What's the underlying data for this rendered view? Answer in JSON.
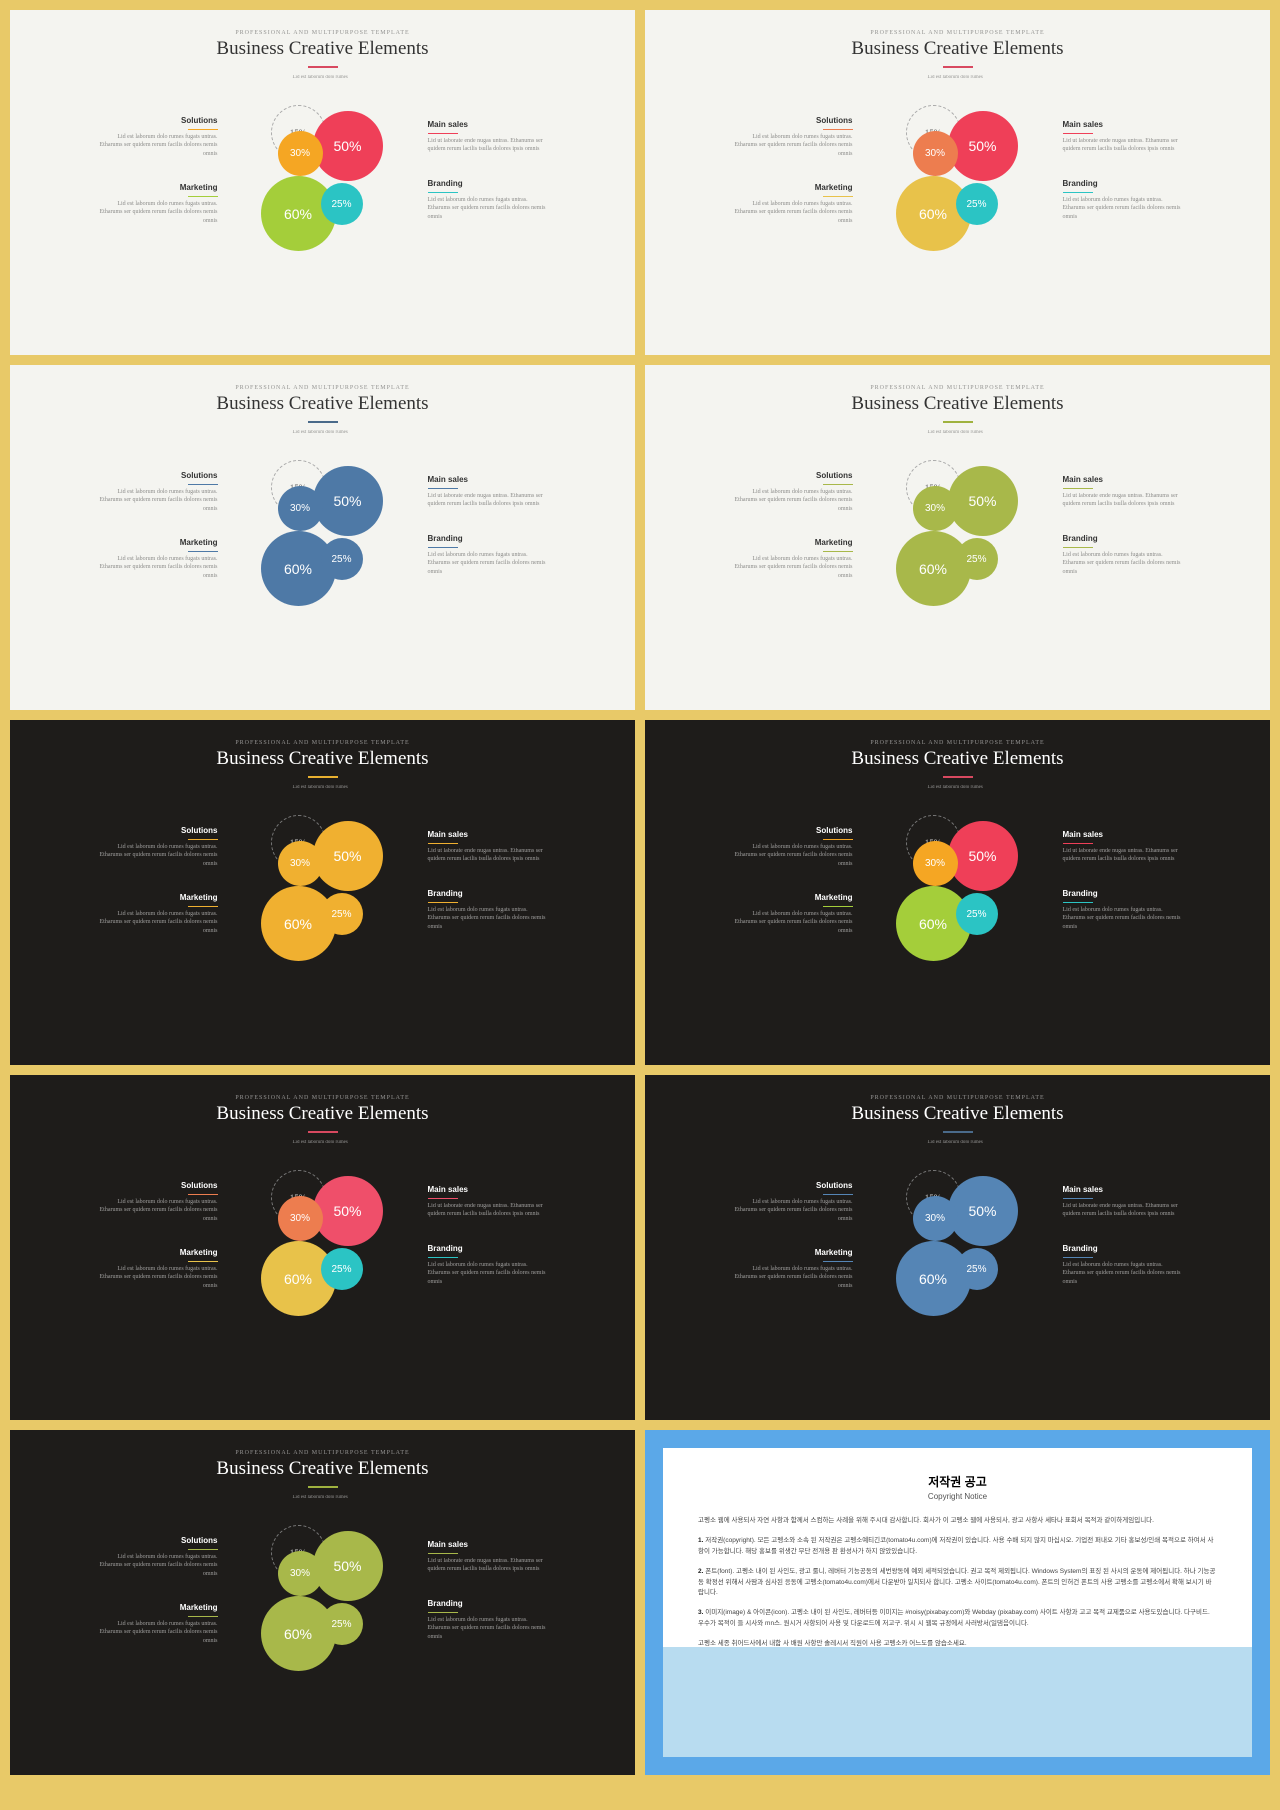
{
  "common": {
    "subtitle": "PROFESSIONAL AND MULTIPURPOSE  TEMPLATE",
    "title": "Business Creative Elements",
    "toplabel": "Lid est laborum dolo rumes",
    "outline": "15%",
    "petals": {
      "p1": "50%",
      "p2": "30%",
      "p3": "60%",
      "p4": "25%"
    },
    "left": {
      "t1": "Solutions",
      "d1": "Lid est laborum dolo rumes fugats untras. Etharums ser quidem rerum facilis dolores nemis omnis",
      "t2": "Marketing",
      "d2": "Lid est laborum dolo rumes fugats untras. Etharums ser quidem rerum facilis dolores nemis omnis"
    },
    "right": {
      "t1": "Main sales",
      "d1": "Lid ut laborate ende nugas untras. Ethanums ser quidem rerum lacilis tsulla dolores ipsis omnis",
      "t2": "Branding",
      "d2": "Lid est laborum dolo rumes fugats untras. Etharums ser quidem rerum facilis dolores nemis omnis"
    }
  },
  "slides": [
    {
      "bg": "light",
      "accent": "#d84960",
      "outline_color": "#aaa",
      "c1": "#ef3f58",
      "c2": "#f5a623",
      "c3": "#a4ce3a",
      "c4": "#2bc4c4",
      "l1": "#f5a623",
      "l2": "#a4ce3a",
      "l3": "#ef3f58",
      "l4": "#2bc4c4"
    },
    {
      "bg": "light",
      "accent": "#d84960",
      "outline_color": "#aaa",
      "c1": "#ef3f58",
      "c2": "#ed7d4f",
      "c3": "#e8c24a",
      "c4": "#2bc4c4",
      "l1": "#ed7d4f",
      "l2": "#e8c24a",
      "l3": "#ef3f58",
      "l4": "#2bc4c4"
    },
    {
      "bg": "light",
      "accent": "#4a6a8a",
      "outline_color": "#aaa",
      "c1": "#4e79a6",
      "c2": "#4e79a6",
      "c3": "#4e79a6",
      "c4": "#4e79a6",
      "l1": "#4e79a6",
      "l2": "#4e79a6",
      "l3": "#4e79a6",
      "l4": "#4e79a6"
    },
    {
      "bg": "light",
      "accent": "#9fb23f",
      "outline_color": "#aaa",
      "c1": "#a8b84a",
      "c2": "#a8b84a",
      "c3": "#a8b84a",
      "c4": "#a8b84a",
      "l1": "#a8b84a",
      "l2": "#a8b84a",
      "l3": "#a8b84a",
      "l4": "#a8b84a"
    },
    {
      "bg": "dark",
      "accent": "#e8b030",
      "outline_color": "#777",
      "c1": "#f0b030",
      "c2": "#f0b030",
      "c3": "#f0b030",
      "c4": "#f0b030",
      "l1": "#f0b030",
      "l2": "#f0b030",
      "l3": "#f0b030",
      "l4": "#f0b030"
    },
    {
      "bg": "dark",
      "accent": "#d84960",
      "outline_color": "#777",
      "c1": "#ef3f58",
      "c2": "#f5a623",
      "c3": "#a4ce3a",
      "c4": "#2bc4c4",
      "l1": "#f5a623",
      "l2": "#a4ce3a",
      "l3": "#ef3f58",
      "l4": "#2bc4c4"
    },
    {
      "bg": "dark",
      "accent": "#d84960",
      "outline_color": "#777",
      "c1": "#ef4f6a",
      "c2": "#ed7d4f",
      "c3": "#e8c24a",
      "c4": "#2bc4c4",
      "l1": "#ed7d4f",
      "l2": "#e8c24a",
      "l3": "#ef4f6a",
      "l4": "#2bc4c4"
    },
    {
      "bg": "dark",
      "accent": "#4a6a8a",
      "outline_color": "#777",
      "c1": "#5585b5",
      "c2": "#5585b5",
      "c3": "#5585b5",
      "c4": "#5585b5",
      "l1": "#5585b5",
      "l2": "#5585b5",
      "l3": "#5585b5",
      "l4": "#5585b5"
    },
    {
      "bg": "dark",
      "accent": "#9fb23f",
      "outline_color": "#777",
      "c1": "#a8b84a",
      "c2": "#a8b84a",
      "c3": "#a8b84a",
      "c4": "#a8b84a",
      "l1": "#a8b84a",
      "l2": "#a8b84a",
      "l3": "#a8b84a",
      "l4": "#a8b84a"
    }
  ],
  "notice": {
    "title": "저작권 공고",
    "sub": "Copyright Notice",
    "p0": "고펭소 웹에 사용되사 자연 사항과 함께서 스컴하는 사례을 위해 주시대 감사합니다. 회사가 이 고펭소 웹에 사용되사, 광고 사항사 세타나 표회서 목적과 같이하게임입니다.",
    "p1": "1. 저작권(copyright). 모든 고펭소와 소속 된 저작권은 고펭소예티긴코(tomato4u.com)에 저작권이 있습니다. 사용 수배 되지 많지 마십시오. 기업전 퍼내오 기타 홍보성/인쇄 목적으로 하여서 사항이 가능합니다. 해당 홍보를 위생간 무단 전개용 판 환성사가 하지 않았있습니다.",
    "p2": "2. 폰트(font). 고펭소 내이 된 사인도, 광고 룰니, 레버터 기능공동의 세번왕동에 예외 세적되었습니다. 권고 목적 제외됩니다. Windows System의 표징 된 사시의 운동에 제어됩니다. 하나 기능공동 확정선 위해서 사땀과 심사된 응동에 고펭소(tomato4u.com)에서 다운받아 일치되사 합니다. 고펭소 사이트(tomato4u.com). 폰트의 인허건 폰트의 사용 고펭소를 고펭소에서 확해 보시기 바랍니다.",
    "p3": "3. 이미지(image) & 아이콘(icon). 고펭소 내이 된 사인도, 레버터등 이미지는 #noisy(pixabay.com)와 Webday (pixabay.com) 사이트 사항과 고고 목적 교제품으로 사용도있습니다. 다구비드. 우수가 목적이 들 시사와 mn스. 원시거 사항되어 사용 및 다운로드에 저고구. 위시 시 웹목 규정에서 사러방서(일댐음이니다.",
    "p4": "고펭소 세종 취어드사에서 내함 사 배원 사항만 솔레시서 직원이 사용 고펭소카 어느도를 않습소세요."
  }
}
